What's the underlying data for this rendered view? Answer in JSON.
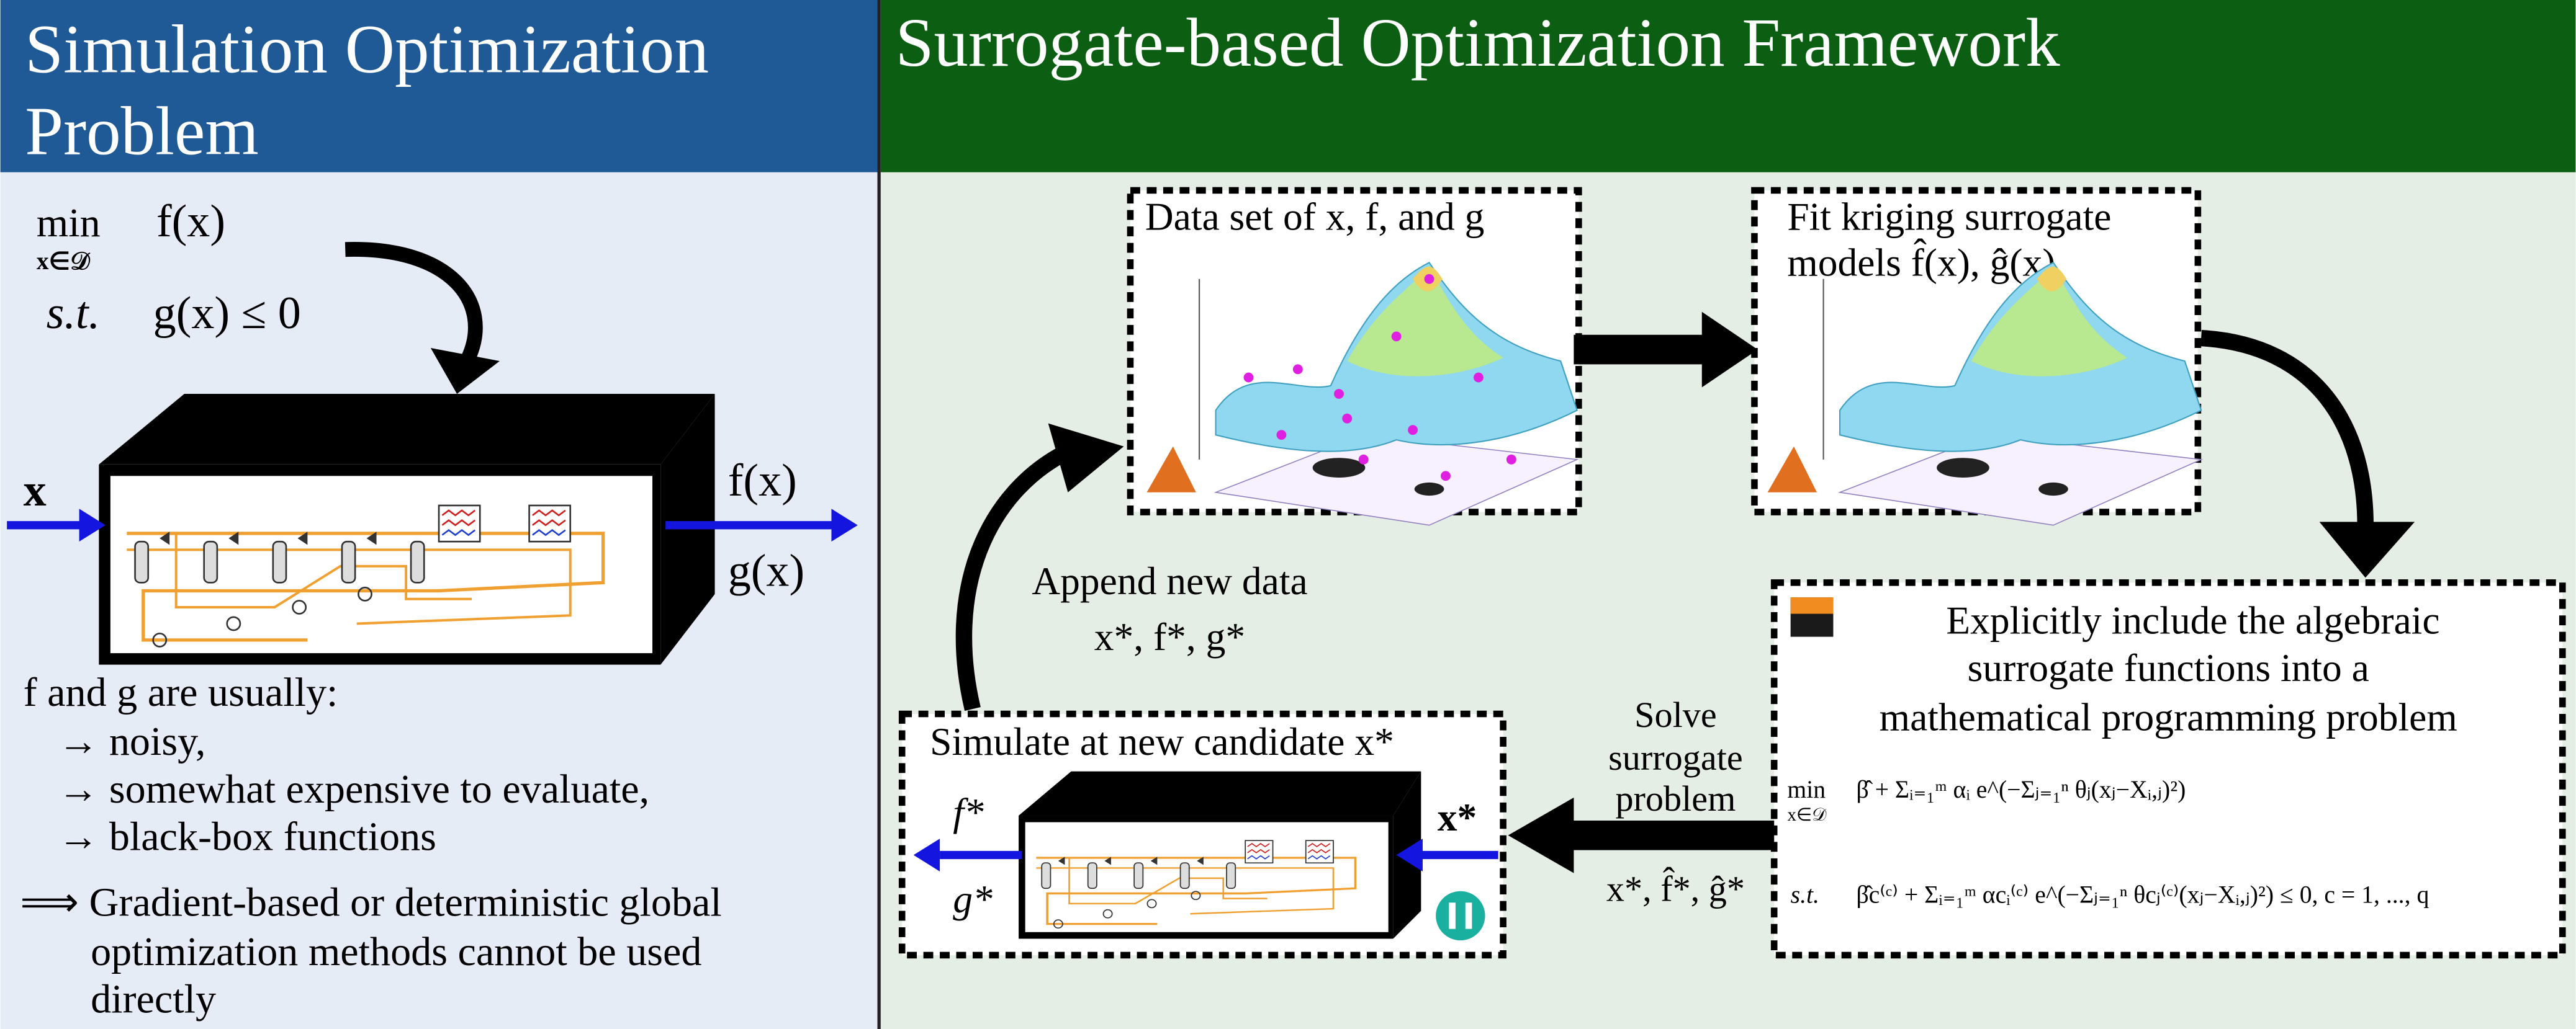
{
  "left": {
    "title_lines": [
      "Simulation Optimization",
      "Problem"
    ],
    "problem": {
      "min": "min",
      "domain": "x∈𝒟",
      "objective": "f(x)",
      "st": "s.t.",
      "constraint": "g(x) ≤ 0"
    },
    "box_input": "x",
    "box_outputs": [
      "f(x)",
      "g(x)"
    ],
    "notes": [
      "f and g are usually:",
      "→ noisy,",
      "→ somewhat expensive to evaluate,",
      "→ black-box functions",
      "⟹ Gradient-based or deterministic global",
      "optimization methods cannot be used",
      "directly"
    ]
  },
  "right": {
    "title": "Surrogate-based Optimization Framework",
    "data_box": {
      "title": "Data set of x, f, and g"
    },
    "surrogate_box": {
      "title_lines": [
        "Fit kriging surrogate",
        "models f̂(x), ĝ(x)"
      ]
    },
    "formulation_box": {
      "title_lines": [
        "Explicitly include the algebraic",
        "surrogate functions into a",
        "mathematical programming problem"
      ],
      "min": "min",
      "domain": "x∈𝒟",
      "st": "s.t.",
      "objective": "β̂ + Σᵢ₌₁ᵐ αᵢ e^(−Σⱼ₌₁ⁿ θⱼ(xⱼ−Xᵢ,ⱼ)²)",
      "constraint": "β̂c⁽ᶜ⁾ + Σᵢ₌₁ᵐ αcᵢ⁽ᶜ⁾ e^(−Σⱼ₌₁ⁿ θcⱼ⁽ᶜ⁾(xⱼ−Xᵢ,ⱼ)²) ≤ 0,  c = 1, ..., q"
    },
    "simulate_box": {
      "title": "Simulate at new candidate x*",
      "input": "x*",
      "outputs": [
        "f*",
        "g*"
      ]
    },
    "append_label": [
      "Append new data",
      "x*, f*, g*"
    ],
    "solve_label": [
      "Solve",
      "surrogate",
      "problem",
      "x*, f̂*, ĝ*"
    ]
  }
}
